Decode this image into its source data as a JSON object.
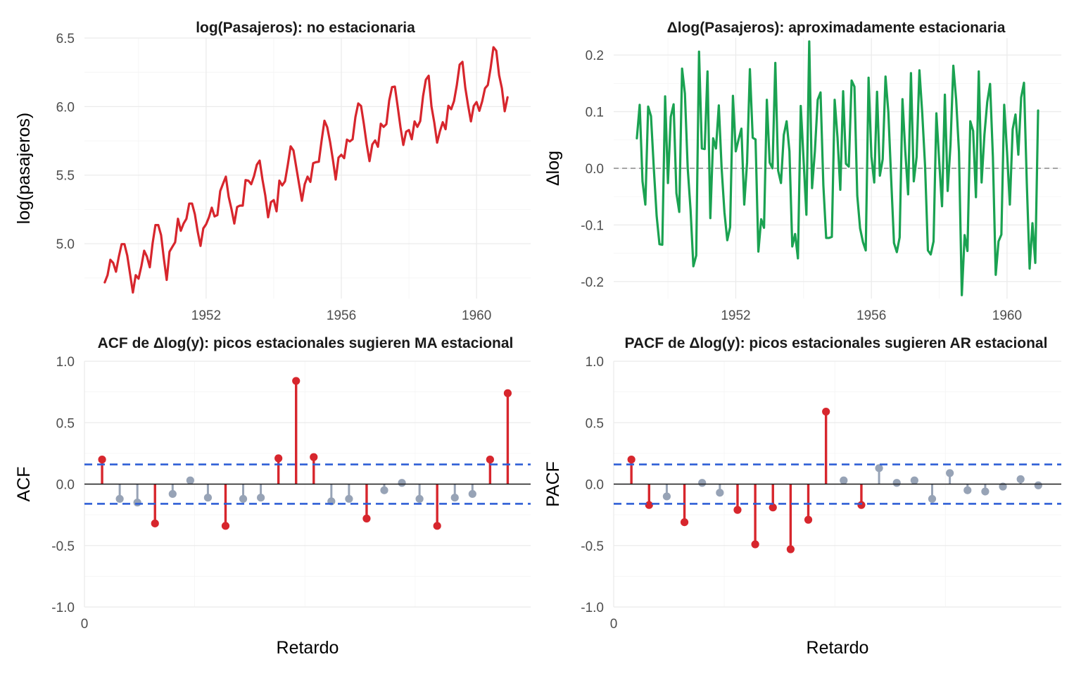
{
  "colors": {
    "nonstationary_line": "#d7262d",
    "diff_line": "#1aa251",
    "significant": "#d7262d",
    "nonsignificant": "#97a3b6",
    "conf_band": "#2f5fd6",
    "zero_ref": "#8a8a8a"
  },
  "chart_data": [
    {
      "type": "line",
      "title": "log(Pasajeros): no estacionaria",
      "xlabel": "",
      "ylabel": "log(pasajeros)",
      "x_start": 1949.0,
      "x_step": 0.08333,
      "xlim": [
        1948.4,
        1961.6
      ],
      "ylim": [
        4.6,
        6.5
      ],
      "x_ticks": [
        1952,
        1956,
        1960
      ],
      "y_ticks": [
        5.0,
        5.5,
        6.0,
        6.5
      ],
      "x_tick_labels": [
        "1952",
        "1956",
        "1960"
      ],
      "y_tick_labels": [
        "5.0",
        "5.5",
        "6.0",
        "6.5"
      ],
      "grid": true,
      "values": [
        4.718,
        4.771,
        4.883,
        4.86,
        4.796,
        4.905,
        4.997,
        4.997,
        4.913,
        4.779,
        4.644,
        4.771,
        4.745,
        4.836,
        4.949,
        4.905,
        4.828,
        5.004,
        5.136,
        5.136,
        5.063,
        4.89,
        4.736,
        4.942,
        4.977,
        5.011,
        5.182,
        5.094,
        5.147,
        5.182,
        5.293,
        5.293,
        5.215,
        5.088,
        4.984,
        5.112,
        5.142,
        5.193,
        5.263,
        5.199,
        5.209,
        5.384,
        5.438,
        5.489,
        5.342,
        5.252,
        5.147,
        5.268,
        5.278,
        5.278,
        5.464,
        5.46,
        5.434,
        5.493,
        5.576,
        5.606,
        5.468,
        5.352,
        5.193,
        5.303,
        5.318,
        5.236,
        5.46,
        5.425,
        5.455,
        5.576,
        5.71,
        5.68,
        5.557,
        5.434,
        5.313,
        5.434,
        5.489,
        5.451,
        5.587,
        5.595,
        5.598,
        5.753,
        5.897,
        5.849,
        5.743,
        5.613,
        5.468,
        5.628,
        5.649,
        5.624,
        5.759,
        5.746,
        5.762,
        5.924,
        6.023,
        6.004,
        5.872,
        5.724,
        5.602,
        5.724,
        5.753,
        5.707,
        5.875,
        5.852,
        5.872,
        6.045,
        6.142,
        6.146,
        6.001,
        5.849,
        5.72,
        5.817,
        5.829,
        5.762,
        5.892,
        5.852,
        5.894,
        6.075,
        6.196,
        6.225,
        6.001,
        5.883,
        5.737,
        5.82,
        5.886,
        5.835,
        6.006,
        5.981,
        6.04,
        6.157,
        6.306,
        6.326,
        6.138,
        6.009,
        5.892,
        6.004,
        6.033,
        5.969,
        6.038,
        6.133,
        6.157,
        6.282,
        6.433,
        6.407,
        6.23,
        6.133,
        5.966,
        6.068
      ]
    },
    {
      "type": "line",
      "title": "Δlog(Pasajeros): aproximadamente estacionaria",
      "xlabel": "",
      "ylabel": "Δlog",
      "x_start": 1949.0833,
      "x_step": 0.08333,
      "xlim": [
        1948.4,
        1961.6
      ],
      "ylim": [
        -0.23,
        0.23
      ],
      "x_ticks": [
        1952,
        1956,
        1960
      ],
      "y_ticks": [
        -0.2,
        -0.1,
        0.0,
        0.1,
        0.2
      ],
      "x_tick_labels": [
        "1952",
        "1956",
        "1960"
      ],
      "y_tick_labels": [
        "-0.2",
        "-0.1",
        "0.0",
        "0.1",
        "0.2"
      ],
      "reference_line": 0.0,
      "grid": true,
      "values": [
        0.053,
        0.112,
        -0.023,
        -0.064,
        0.109,
        0.092,
        0.0,
        -0.084,
        -0.134,
        -0.135,
        0.127,
        -0.026,
        0.091,
        0.113,
        -0.044,
        -0.077,
        0.176,
        0.132,
        0.0,
        -0.073,
        -0.173,
        -0.154,
        0.206,
        0.035,
        0.034,
        0.171,
        -0.088,
        0.053,
        0.035,
        0.111,
        0.0,
        -0.078,
        -0.127,
        -0.104,
        0.128,
        0.03,
        0.051,
        0.07,
        -0.064,
        0.01,
        0.175,
        0.054,
        0.051,
        -0.147,
        -0.09,
        -0.105,
        0.121,
        0.01,
        0.0,
        0.186,
        -0.004,
        -0.026,
        0.059,
        0.083,
        0.03,
        -0.138,
        -0.116,
        -0.159,
        0.11,
        0.015,
        -0.082,
        0.224,
        -0.035,
        0.03,
        0.121,
        0.134,
        -0.03,
        -0.123,
        -0.123,
        -0.121,
        0.121,
        0.055,
        -0.038,
        0.136,
        0.008,
        0.003,
        0.155,
        0.144,
        -0.048,
        -0.106,
        -0.13,
        -0.145,
        0.16,
        0.021,
        -0.025,
        0.135,
        -0.013,
        0.016,
        0.162,
        0.099,
        -0.019,
        -0.132,
        -0.148,
        -0.122,
        0.122,
        0.029,
        -0.046,
        0.168,
        -0.023,
        0.02,
        0.173,
        0.097,
        0.004,
        -0.145,
        -0.152,
        -0.129,
        0.097,
        0.012,
        -0.067,
        0.13,
        -0.04,
        0.042,
        0.181,
        0.121,
        0.029,
        -0.224,
        -0.118,
        -0.146,
        0.083,
        0.066,
        -0.051,
        0.171,
        -0.025,
        0.059,
        0.117,
        0.149,
        0.02,
        -0.188,
        -0.129,
        -0.117,
        0.112,
        0.029,
        -0.064,
        0.069,
        0.095,
        0.024,
        0.125,
        0.151,
        -0.026,
        -0.177,
        -0.097,
        -0.167,
        0.102
      ]
    },
    {
      "type": "bar",
      "subtype": "lollipop",
      "title": "ACF de Δlog(y): picos estacionales sugieren MA estacional",
      "xlabel": "Retardo",
      "ylabel": "ACF",
      "xlim": [
        0,
        25.3
      ],
      "ylim": [
        -1.0,
        1.0
      ],
      "x_ticks": [
        0
      ],
      "x_tick_labels": [
        "0"
      ],
      "y_ticks": [
        -1.0,
        -0.5,
        0.0,
        0.5,
        1.0
      ],
      "y_tick_labels": [
        "-1.0",
        "-0.5",
        "0.0",
        "0.5",
        "1.0"
      ],
      "conf_bounds": [
        0.16,
        -0.16
      ],
      "lags": [
        1,
        2,
        3,
        4,
        5,
        6,
        7,
        8,
        9,
        10,
        11,
        12,
        13,
        14,
        15,
        16,
        17,
        18,
        19,
        20,
        21,
        22,
        23,
        24
      ],
      "values": [
        0.2,
        -0.12,
        -0.15,
        -0.32,
        -0.08,
        0.03,
        -0.11,
        -0.34,
        -0.12,
        -0.11,
        0.21,
        0.84,
        0.22,
        -0.14,
        -0.12,
        -0.28,
        -0.05,
        0.01,
        -0.12,
        -0.34,
        -0.11,
        -0.08,
        0.2,
        0.74
      ]
    },
    {
      "type": "bar",
      "subtype": "lollipop",
      "title": "PACF de Δlog(y): picos estacionales sugieren AR estacional",
      "xlabel": "Retardo",
      "ylabel": "PACF",
      "xlim": [
        0,
        25.3
      ],
      "ylim": [
        -1.0,
        1.0
      ],
      "x_ticks": [
        0
      ],
      "x_tick_labels": [
        "0"
      ],
      "y_ticks": [
        -1.0,
        -0.5,
        0.0,
        0.5,
        1.0
      ],
      "y_tick_labels": [
        "-1.0",
        "-0.5",
        "0.0",
        "0.5",
        "1.0"
      ],
      "conf_bounds": [
        0.16,
        -0.16
      ],
      "lags": [
        1,
        2,
        3,
        4,
        5,
        6,
        7,
        8,
        9,
        10,
        11,
        12,
        13,
        14,
        15,
        16,
        17,
        18,
        19,
        20,
        21,
        22,
        23,
        24
      ],
      "values": [
        0.2,
        -0.17,
        -0.1,
        -0.31,
        0.01,
        -0.07,
        -0.21,
        -0.49,
        -0.19,
        -0.53,
        -0.29,
        0.59,
        0.03,
        -0.17,
        0.13,
        0.01,
        0.03,
        -0.12,
        0.09,
        -0.05,
        -0.06,
        -0.02,
        0.04,
        -0.01
      ]
    }
  ]
}
